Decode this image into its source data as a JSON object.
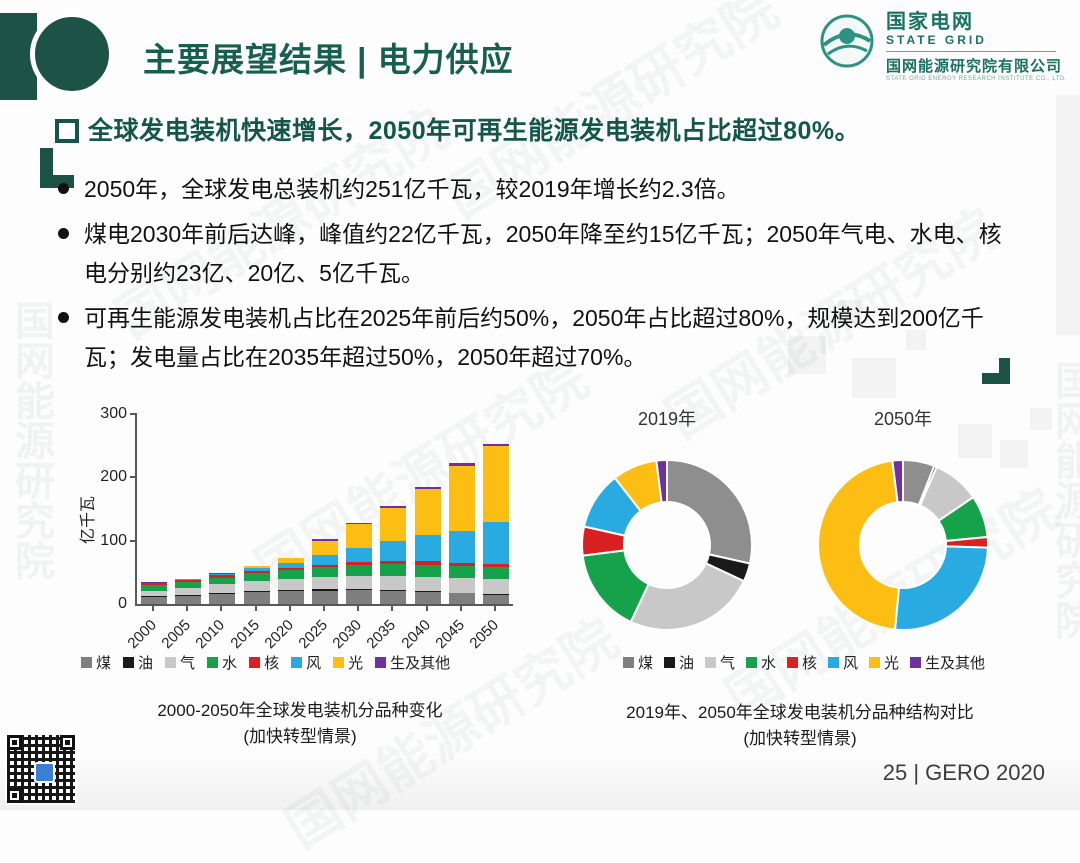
{
  "slide": {
    "title": "主要展望结果 | 电力供应",
    "footer": "25 | GERO 2020",
    "watermark": "国网能源研究院"
  },
  "logo": {
    "org_cn": "国家电网",
    "org_en": "STATE GRID",
    "institute_cn": "国网能源研究院有限公司",
    "institute_en": "STATE GRID ENERGY RESEARCH INSTITUTE CO., LTD."
  },
  "headline": "全球发电装机快速增长，2050年可再生能源发电装机占比超过80%。",
  "bullets": [
    "2050年，全球发电总装机约251亿千瓦，较2019年增长约2.3倍。",
    "煤电2030年前后达峰，峰值约22亿千瓦，2050年降至约15亿千瓦；2050年气电、水电、核电分别约23亿、20亿、5亿千瓦。",
    "可再生能源发电装机占比在2025年前后约50%，2050年占比超过80%，规模达到200亿千瓦；发电量占比在2035年超过50%，2050年超过70%。"
  ],
  "figures": {
    "donut_caption_line1": "2019年、2050年全球发电装机分品种结构对比",
    "donut_caption_line2": "(加快转型情景)"
  },
  "chart_data": [
    {
      "type": "bar",
      "stacked": true,
      "title": "2000-2050年全球发电装机分品种变化",
      "subtitle": "(加快转型情景)",
      "ylabel": "亿千瓦",
      "ylim": [
        0,
        300
      ],
      "yticks": [
        0,
        100,
        200,
        300
      ],
      "categories": [
        "2000",
        "2005",
        "2010",
        "2015",
        "2020",
        "2025",
        "2030",
        "2035",
        "2040",
        "2045",
        "2050"
      ],
      "series": [
        {
          "key": "coal",
          "name": "煤",
          "color": "#7f7f7f",
          "values": [
            11,
            13,
            16,
            19,
            20,
            21,
            22,
            21,
            19,
            17,
            15
          ]
        },
        {
          "key": "oil",
          "name": "油",
          "color": "#1a1a1a",
          "values": [
            2,
            2,
            2,
            2,
            2,
            2,
            1.8,
            1.5,
            1.2,
            1,
            1
          ]
        },
        {
          "key": "gas",
          "name": "气",
          "color": "#c8c8c8",
          "values": [
            8,
            10,
            13,
            16,
            18,
            20,
            21,
            22,
            23,
            23,
            23
          ]
        },
        {
          "key": "hydro",
          "name": "水",
          "color": "#15a24b",
          "values": [
            9,
            9.5,
            10.5,
            12,
            13.5,
            15,
            16.5,
            18,
            19,
            19.5,
            20
          ]
        },
        {
          "key": "nuclear",
          "name": "核",
          "color": "#d92121",
          "values": [
            3.5,
            3.7,
            3.8,
            3.9,
            4,
            4.2,
            4.5,
            4.8,
            5,
            5,
            5
          ]
        },
        {
          "key": "wind",
          "name": "风",
          "color": "#29abe2",
          "values": [
            0.3,
            0.6,
            2,
            4.3,
            7.5,
            16,
            23,
            32,
            42,
            50,
            65
          ]
        },
        {
          "key": "solar",
          "name": "光",
          "color": "#fcbe12",
          "values": [
            0,
            0.1,
            0.4,
            2.3,
            7,
            22,
            37,
            53,
            73,
            103,
            120
          ]
        },
        {
          "key": "bio_other",
          "name": "生及其他",
          "color": "#7030a0",
          "values": [
            0.5,
            0.7,
            0.8,
            1,
            1.5,
            2,
            2.2,
            2.7,
            3,
            3.5,
            3
          ]
        }
      ]
    },
    {
      "type": "pie",
      "donut": true,
      "title": "2019年",
      "unit": "%",
      "slices": [
        {
          "key": "coal",
          "name": "煤",
          "color": "#8e8e8e",
          "value": 28.5
        },
        {
          "key": "oil",
          "name": "油",
          "color": "#1a1a1a",
          "value": 3.5
        },
        {
          "key": "gas",
          "name": "气",
          "color": "#c8c8c8",
          "value": 25
        },
        {
          "key": "hydro",
          "name": "水",
          "color": "#15a24b",
          "value": 16
        },
        {
          "key": "nuclear",
          "name": "核",
          "color": "#d92121",
          "value": 5.5
        },
        {
          "key": "wind",
          "name": "风",
          "color": "#29abe2",
          "value": 11
        },
        {
          "key": "solar",
          "name": "光",
          "color": "#fcbe12",
          "value": 8.5
        },
        {
          "key": "bio_other",
          "name": "生及其他",
          "color": "#7030a0",
          "value": 2
        }
      ]
    },
    {
      "type": "pie",
      "donut": true,
      "title": "2050年",
      "unit": "%",
      "slices": [
        {
          "key": "coal",
          "name": "煤",
          "color": "#8e8e8e",
          "value": 6
        },
        {
          "key": "oil",
          "name": "油",
          "color": "#1a1a1a",
          "value": 0.5
        },
        {
          "key": "gas",
          "name": "气",
          "color": "#c8c8c8",
          "value": 9
        },
        {
          "key": "hydro",
          "name": "水",
          "color": "#15a24b",
          "value": 8
        },
        {
          "key": "nuclear",
          "name": "核",
          "color": "#d92121",
          "value": 2
        },
        {
          "key": "wind",
          "name": "风",
          "color": "#29abe2",
          "value": 26
        },
        {
          "key": "solar",
          "name": "光",
          "color": "#fcbe12",
          "value": 46.5
        },
        {
          "key": "bio_other",
          "name": "生及其他",
          "color": "#7030a0",
          "value": 2
        }
      ]
    }
  ]
}
